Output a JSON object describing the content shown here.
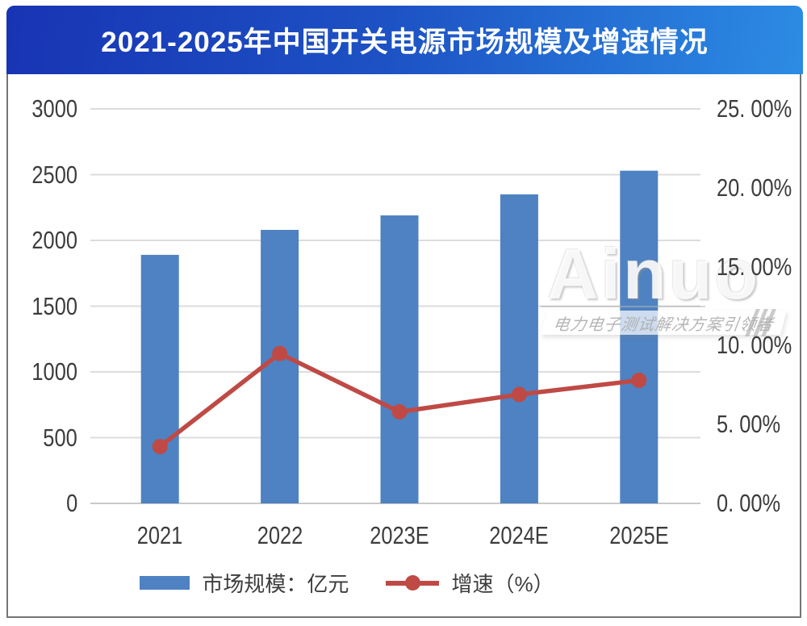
{
  "header": {
    "title": "2021-2025年中国开关电源市场规模及增速情况"
  },
  "watermark": {
    "brand": "Ainuo",
    "tagline": "电力电子测试解决方案引领者"
  },
  "legend": {
    "bar_label": "市场规模：亿元",
    "line_label": "增速（%）"
  },
  "colors": {
    "bar": "#4e82c2",
    "line": "#bf4a45",
    "gridline": "#dcdcdc",
    "baseline": "#c9c9c9",
    "axis_text": "#3d3d3d",
    "banner_left": "#1834b4",
    "banner_right": "#2c8ce4",
    "title_text": "#ffffff"
  },
  "chart_data": {
    "type": "bar",
    "subtype": "bar+line combo, dual y-axis",
    "title": "2021-2025年中国开关电源市场规模及增速情况",
    "categories": [
      "2021",
      "2022",
      "2023E",
      "2024E",
      "2025E"
    ],
    "series": [
      {
        "name": "市场规模：亿元",
        "type": "bar",
        "axis": "left",
        "values": [
          1890,
          2080,
          2190,
          2350,
          2530
        ],
        "color": "#4e82c2"
      },
      {
        "name": "增速（%）",
        "type": "line",
        "axis": "right",
        "values": [
          3.6,
          9.5,
          5.8,
          6.9,
          7.8
        ],
        "color": "#bf4a45"
      }
    ],
    "left_axis": {
      "min": 0,
      "max": 3000,
      "tick_step": 500,
      "tick_labels": [
        "3000",
        "2500",
        "2000",
        "1500",
        "1000",
        "500",
        "0"
      ]
    },
    "right_axis": {
      "min": 0,
      "max": 25,
      "tick_step": 5,
      "tick_labels": [
        "25. 00%",
        "20. 00%",
        "15. 00%",
        "10. 00%",
        "5. 00%",
        "0. 00%"
      ]
    },
    "grid": true,
    "legend_position": "bottom",
    "xlabel": "",
    "ylabel_left": "亿元",
    "ylabel_right": "%"
  }
}
